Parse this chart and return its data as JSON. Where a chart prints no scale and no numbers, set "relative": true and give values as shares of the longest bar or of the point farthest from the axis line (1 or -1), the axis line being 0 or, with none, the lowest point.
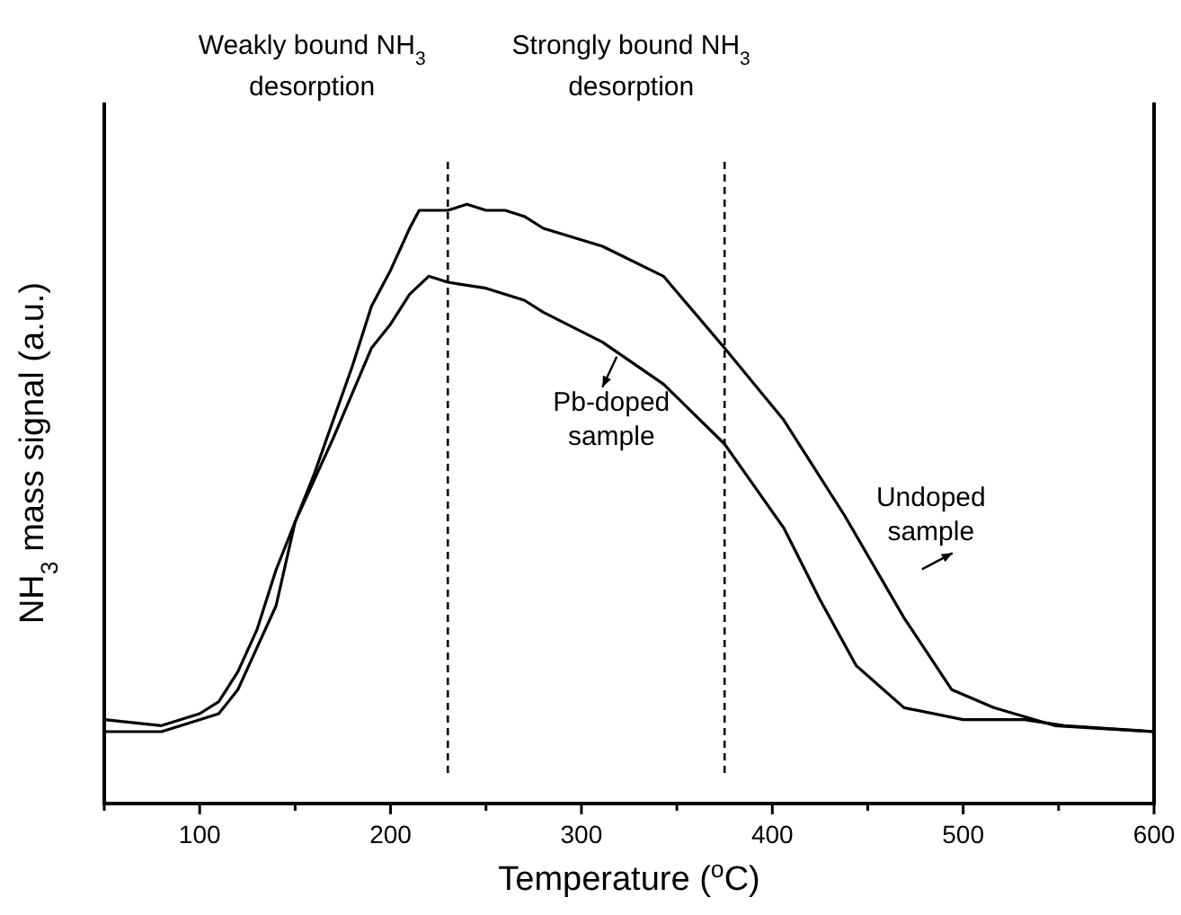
{
  "chart_data": {
    "type": "line",
    "relative": true,
    "xlabel": "Temperature ($^{o}$C)",
    "ylabel": "NH$_{3}$ mass signal (a.u.)",
    "xlim": [
      50,
      600
    ],
    "xticks": [
      {
        "value": 50,
        "label": null
      },
      100,
      {
        "value": 150,
        "label": null
      },
      200,
      {
        "value": 250,
        "label": null
      },
      300,
      {
        "value": 350,
        "label": null
      },
      400,
      {
        "value": 450,
        "label": null
      },
      500,
      {
        "value": 550,
        "label": null
      },
      600
    ],
    "grid": false,
    "marker": "none",
    "line_style": "solid",
    "series": [
      {
        "name": "Pb-doped sample",
        "color": "#000000",
        "x": [
          50,
          80,
          100,
          110,
          120,
          130,
          140,
          150,
          170,
          190,
          200,
          210,
          220,
          230,
          250,
          270,
          280,
          311,
          343,
          375,
          406,
          425,
          444,
          469,
          500,
          532,
          553,
          600
        ],
        "values": [
          0.14,
          0.13,
          0.15,
          0.17,
          0.22,
          0.29,
          0.39,
          0.47,
          0.61,
          0.76,
          0.8,
          0.85,
          0.88,
          0.87,
          0.86,
          0.84,
          0.82,
          0.77,
          0.7,
          0.6,
          0.46,
          0.34,
          0.23,
          0.16,
          0.14,
          0.14,
          0.13,
          0.12
        ]
      },
      {
        "name": "Undoped sample",
        "color": "#000000",
        "x": [
          50,
          80,
          100,
          110,
          120,
          130,
          140,
          150,
          160,
          170,
          180,
          190,
          200,
          210,
          215,
          220,
          230,
          240,
          250,
          260,
          270,
          280,
          311,
          343,
          375,
          406,
          438,
          469,
          494,
          516,
          548,
          600
        ],
        "values": [
          0.12,
          0.12,
          0.14,
          0.15,
          0.19,
          0.26,
          0.33,
          0.47,
          0.55,
          0.64,
          0.73,
          0.83,
          0.89,
          0.96,
          0.99,
          0.99,
          0.99,
          1,
          0.99,
          0.99,
          0.98,
          0.96,
          0.93,
          0.88,
          0.76,
          0.64,
          0.48,
          0.31,
          0.19,
          0.16,
          0.13,
          0.12
        ]
      }
    ],
    "ref_lines": [
      {
        "axis": "x",
        "value": 230,
        "label": "Weakly bound NH$_{3}$ desorption",
        "color": "#000000",
        "line_style": "dashed"
      },
      {
        "axis": "x",
        "value": 375,
        "label": "Strongly bound NH$_{3}$ desorption",
        "color": "#000000",
        "line_style": "dashed"
      }
    ]
  }
}
